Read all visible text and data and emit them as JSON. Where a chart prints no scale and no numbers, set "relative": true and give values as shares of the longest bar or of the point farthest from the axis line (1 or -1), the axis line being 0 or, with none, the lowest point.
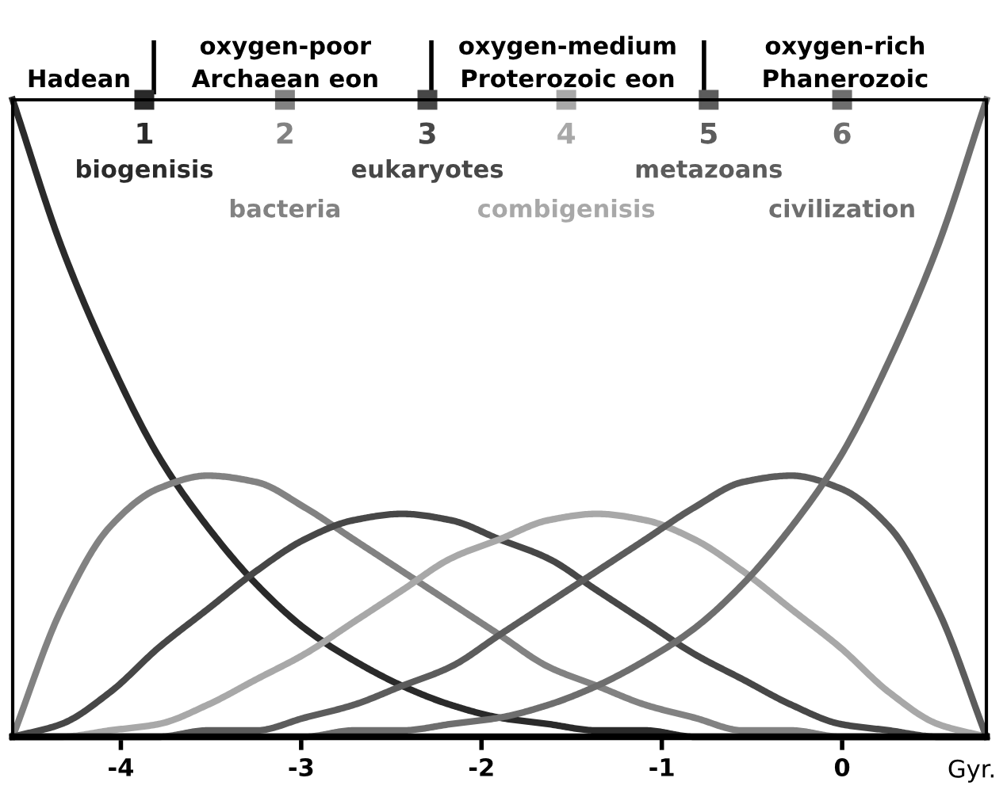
{
  "chart_data": {
    "type": "line",
    "relative": true,
    "xlabel": "Gyr.",
    "xlim": [
      -4.6,
      0.8
    ],
    "xticks": [
      -4,
      -3,
      -2,
      -1,
      0
    ],
    "tick_labels": "x",
    "grid": false,
    "legend": false,
    "marker": "none",
    "line_style": "solid",
    "x": [
      -4.6,
      -4.33,
      -4.06,
      -3.79,
      -3.52,
      -3.25,
      -2.98,
      -2.71,
      -2.44,
      -2.17,
      -1.9,
      -1.63,
      -1.36,
      -1.09,
      -0.82,
      -0.55,
      -0.28,
      -0.01,
      0.26,
      0.53,
      0.8
    ],
    "series": [
      {
        "name": "biogenisis",
        "color": "#2a2a2a",
        "values": [
          1,
          0.77,
          0.59,
          0.44,
          0.33,
          0.24,
          0.17,
          0.12,
          0.08,
          0.05,
          0.03,
          0.02,
          0.01,
          0.01,
          0,
          0,
          0,
          0,
          0,
          0,
          0
        ]
      },
      {
        "name": "bacteria",
        "color": "#828282",
        "values": [
          0,
          0.2,
          0.33,
          0.39,
          0.41,
          0.4,
          0.36,
          0.31,
          0.26,
          0.21,
          0.16,
          0.11,
          0.08,
          0.05,
          0.03,
          0.01,
          0.01,
          0,
          0,
          0,
          0
        ]
      },
      {
        "name": "eukaryotes",
        "color": "#474747",
        "values": [
          0,
          0.02,
          0.07,
          0.14,
          0.2,
          0.26,
          0.31,
          0.34,
          0.35,
          0.34,
          0.31,
          0.28,
          0.23,
          0.18,
          0.13,
          0.09,
          0.05,
          0.02,
          0.01,
          0,
          0
        ]
      },
      {
        "name": "combigenisis",
        "color": "#a8a8a8",
        "values": [
          0,
          0,
          0.01,
          0.02,
          0.05,
          0.09,
          0.13,
          0.18,
          0.23,
          0.28,
          0.31,
          0.34,
          0.35,
          0.34,
          0.31,
          0.26,
          0.2,
          0.14,
          0.07,
          0.02,
          0
        ]
      },
      {
        "name": "metazoans",
        "color": "#5c5c5c",
        "values": [
          0,
          0,
          0,
          0,
          0.01,
          0.01,
          0.03,
          0.05,
          0.08,
          0.11,
          0.16,
          0.21,
          0.26,
          0.31,
          0.36,
          0.4,
          0.41,
          0.39,
          0.33,
          0.2,
          0
        ]
      },
      {
        "name": "civilization",
        "color": "#6e6e6e",
        "values": [
          0,
          0,
          0,
          0,
          0,
          0,
          0,
          0.01,
          0.01,
          0.02,
          0.03,
          0.05,
          0.08,
          0.12,
          0.17,
          0.24,
          0.33,
          0.44,
          0.59,
          0.77,
          1
        ]
      }
    ],
    "annotations": [
      {
        "text": "1",
        "x": -3.87,
        "y": 1
      },
      {
        "text": "2",
        "x": -3.09,
        "y": 1
      },
      {
        "text": "3",
        "x": -2.3,
        "y": 1
      },
      {
        "text": "4",
        "x": -1.53,
        "y": 1
      },
      {
        "text": "5",
        "x": -0.74,
        "y": 1
      },
      {
        "text": "6",
        "x": 0,
        "y": 1
      },
      "Hadean",
      "oxygen-poor\nArchaean eon",
      "oxygen-medium\nProterozoic eon",
      "oxygen-rich\nPhanerozoic"
    ]
  }
}
